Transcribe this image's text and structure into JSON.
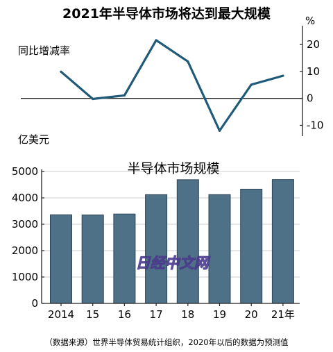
{
  "title": "2021年半导体市场将达到最大规模",
  "source_note": "（数据来源）世界半导体贸易统计组织，2020年以后的数据为预测值",
  "watermark": "日经中文网",
  "colors": {
    "line": "#1f5a78",
    "bar_fill": "#4f7187",
    "bar_stroke": "#2a4556",
    "axis": "#222222",
    "grid": "#cccccc"
  },
  "chart_data": [
    {
      "type": "line",
      "ylabel": "同比增减率",
      "unit": "%",
      "y_axis_side": "right",
      "x": [
        "2014",
        "15",
        "16",
        "17",
        "18",
        "19",
        "20",
        "21年"
      ],
      "series": [
        {
          "values": [
            9.9,
            -0.2,
            1.1,
            21.6,
            13.7,
            -12.0,
            5.1,
            8.4
          ]
        }
      ],
      "ylim": [
        -14,
        27
      ],
      "yticks": [
        {
          "value": 20,
          "label": "20"
        },
        {
          "value": 10,
          "label": "10"
        },
        {
          "value": 0,
          "label": "0"
        },
        {
          "value": -10,
          "label": "-10"
        }
      ],
      "grid": false
    },
    {
      "type": "bar",
      "title": "半导体市场规模",
      "ylabel": "亿美元",
      "categories": [
        "2014",
        "15",
        "16",
        "17",
        "18",
        "19",
        "20",
        "21年"
      ],
      "values": [
        3359,
        3352,
        3389,
        4122,
        4688,
        4123,
        4331,
        4694
      ],
      "ylim": [
        0,
        5000
      ],
      "yticks": [
        {
          "value": 0,
          "label": "0"
        },
        {
          "value": 1000,
          "label": "1000"
        },
        {
          "value": 2000,
          "label": "2000"
        },
        {
          "value": 3000,
          "label": "3000"
        },
        {
          "value": 4000,
          "label": "4000"
        },
        {
          "value": 5000,
          "label": "5000"
        }
      ],
      "grid": true
    }
  ]
}
